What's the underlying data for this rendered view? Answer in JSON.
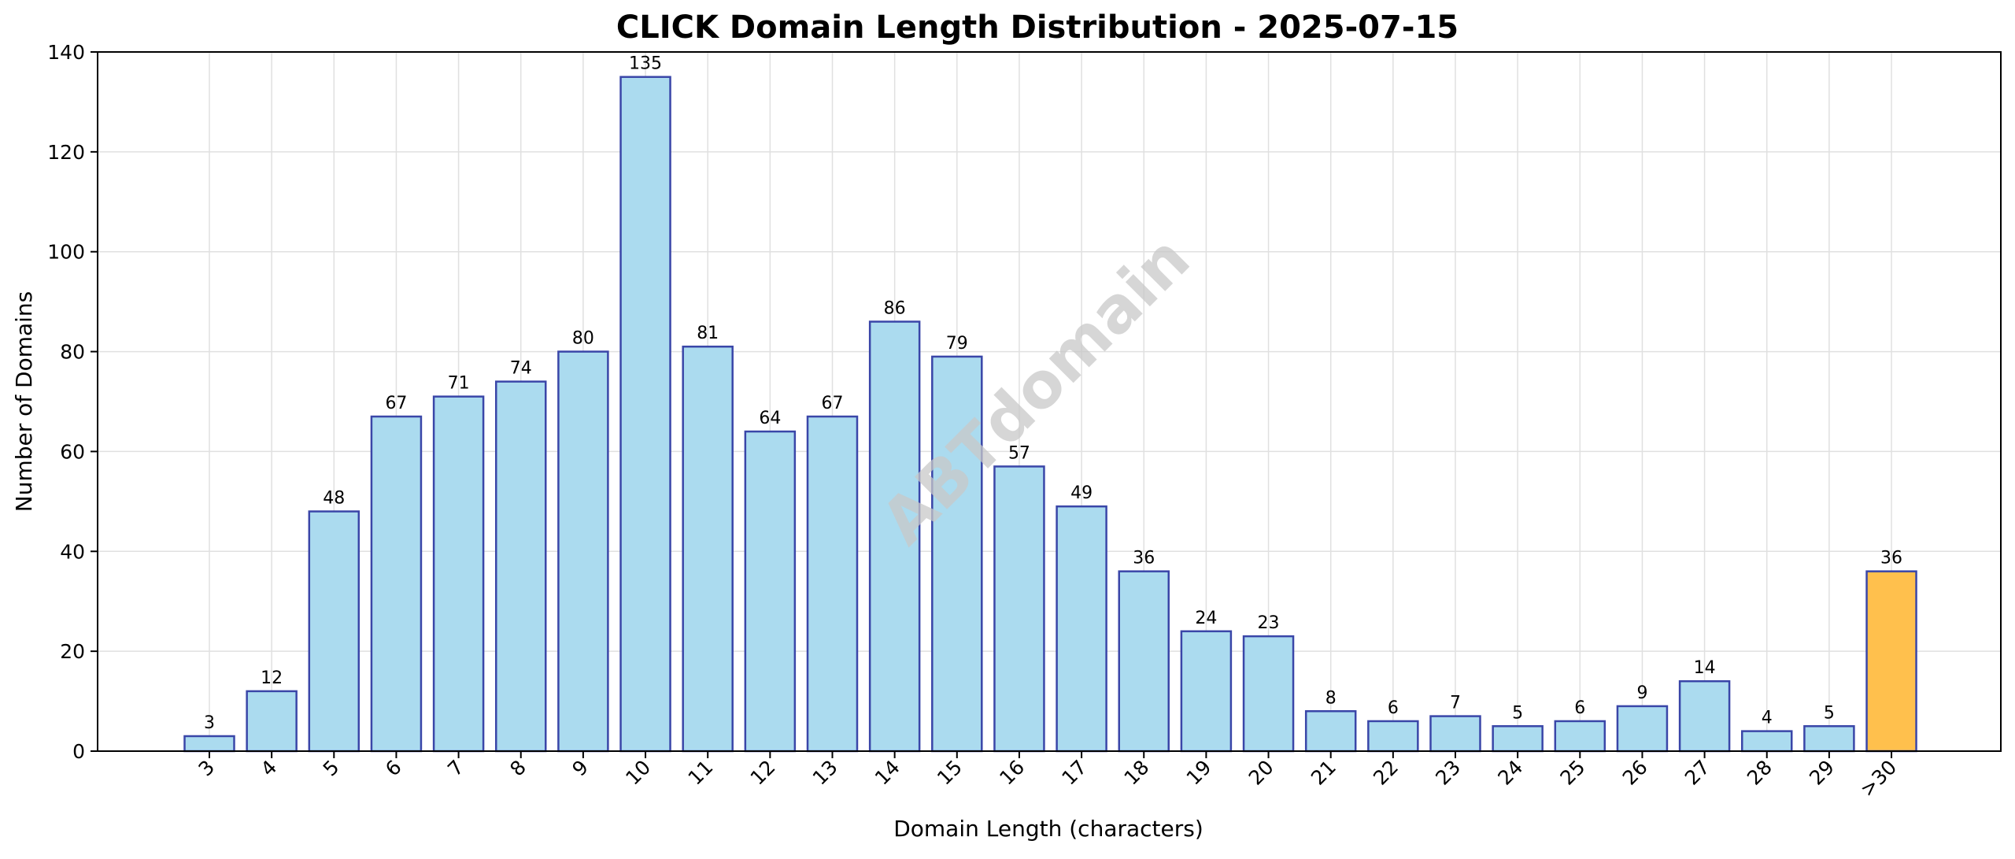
{
  "chart_data": {
    "type": "bar",
    "title": "CLICK Domain Length Distribution - 2025-07-15",
    "xlabel": "Domain Length (characters)",
    "ylabel": "Number of Domains",
    "categories": [
      "3",
      "4",
      "5",
      "6",
      "7",
      "8",
      "9",
      "10",
      "11",
      "12",
      "13",
      "14",
      "15",
      "16",
      "17",
      "18",
      "19",
      "20",
      "21",
      "22",
      "23",
      "24",
      "25",
      "26",
      "27",
      "28",
      "29",
      ">30"
    ],
    "values": [
      3,
      12,
      48,
      67,
      71,
      74,
      80,
      135,
      81,
      64,
      67,
      86,
      79,
      57,
      49,
      36,
      24,
      23,
      8,
      6,
      7,
      5,
      6,
      9,
      14,
      4,
      5,
      36
    ],
    "ylim": [
      0,
      140
    ],
    "yticks": [
      0,
      20,
      40,
      60,
      80,
      100,
      120,
      140
    ],
    "grid": true,
    "watermark": "ABTdomain",
    "colors": {
      "bar": "#abdbef",
      "bar_edge": "#3a46a8",
      "highlight_bar": "#ffc04d",
      "highlight_index": 27,
      "grid": "#e0e0e0",
      "watermark": "#c8c8c8"
    }
  }
}
